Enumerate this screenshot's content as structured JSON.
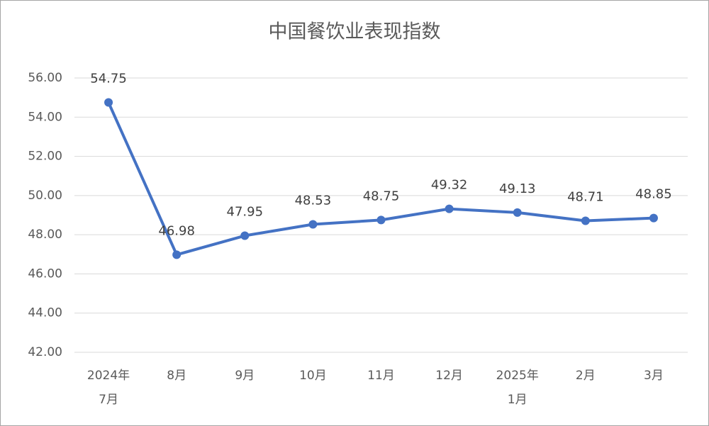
{
  "chart_data": {
    "type": "line",
    "title": "中国餐饮业表现指数",
    "categories": [
      "2024年\n7月",
      "8月",
      "9月",
      "10月",
      "11月",
      "12月",
      "2025年\n1月",
      "2月",
      "3月"
    ],
    "series": [
      {
        "name": "中国餐饮业表现指数",
        "color": "#4472c4",
        "values": [
          54.75,
          46.98,
          47.95,
          48.53,
          48.75,
          49.32,
          49.13,
          48.71,
          48.85
        ]
      }
    ],
    "ylim": [
      42,
      56
    ],
    "yticks": [
      {
        "value": 42,
        "label": "42.00"
      },
      {
        "value": 44,
        "label": "44.00"
      },
      {
        "value": 46,
        "label": "46.00"
      },
      {
        "value": 48,
        "label": "48.00"
      },
      {
        "value": 50,
        "label": "50.00"
      },
      {
        "value": 52,
        "label": "52.00"
      },
      {
        "value": 54,
        "label": "54.00"
      },
      {
        "value": 56,
        "label": "56.00"
      }
    ],
    "grid": true
  }
}
